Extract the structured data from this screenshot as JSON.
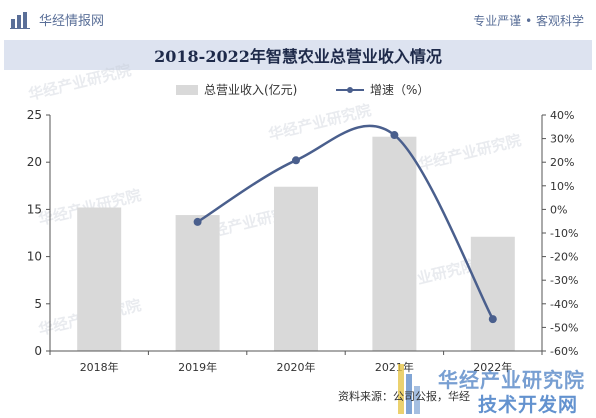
{
  "header": {
    "brand": "华经情报网",
    "slogan": "专业严谨 • 客观科学"
  },
  "title": "2018-2022年智慧农业总营业收入情况",
  "footer": {
    "source": "资料来源：公司公报，华经"
  },
  "watermark": {
    "line1": "华经产业研究院",
    "line2": "技术开发网",
    "tile_text": "华经产业研究院"
  },
  "colors": {
    "bar": "#d9d9d9",
    "line": "#4a5f8d",
    "title_bg": "#dde3f0",
    "brand": "#5a6f98"
  },
  "chart_data": {
    "type": "bar",
    "categories": [
      "2018年",
      "2019年",
      "2020年",
      "2021年",
      "2022年"
    ],
    "series": [
      {
        "name": "总营业收入(亿元)",
        "type": "bar",
        "axis": "left",
        "values": [
          15.2,
          14.4,
          17.4,
          22.7,
          12.1
        ]
      },
      {
        "name": "增速（%）",
        "type": "line",
        "axis": "right",
        "values": [
          null,
          -5.3,
          20.8,
          31.5,
          -46.5
        ]
      }
    ],
    "y_left": {
      "min": 0,
      "max": 25,
      "ticks": [
        "0",
        "5",
        "10",
        "15",
        "20",
        "25"
      ]
    },
    "y_right": {
      "min": -60,
      "max": 40,
      "ticks": [
        "-60%",
        "-50%",
        "-40%",
        "-30%",
        "-20%",
        "-10%",
        "0%",
        "10%",
        "20%",
        "30%",
        "40%"
      ]
    },
    "legend_position": "top-center",
    "grid": false
  }
}
